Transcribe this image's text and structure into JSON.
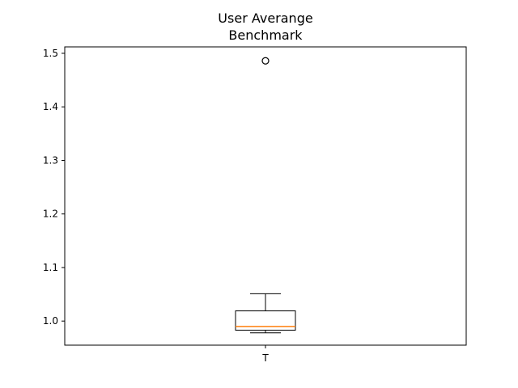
{
  "chart_data": {
    "type": "boxplot",
    "title_lines": [
      "User Averange",
      "Benchmark"
    ],
    "xlabel": "",
    "ylabel": "",
    "categories": [
      "T"
    ],
    "ylim": [
      0.955,
      1.512
    ],
    "yticks": [
      1.0,
      1.1,
      1.2,
      1.3,
      1.4,
      1.5
    ],
    "ytick_labels": [
      "1.0",
      "1.1",
      "1.2",
      "1.3",
      "1.4",
      "1.5"
    ],
    "grid": false,
    "boxes": [
      {
        "category": "T",
        "whisker_low": 0.978,
        "q1": 0.983,
        "median": 0.99,
        "q3": 1.019,
        "whisker_high": 1.051,
        "outliers": [
          1.486
        ]
      }
    ],
    "colors": {
      "box": "#000000",
      "median": "#ff7f0e",
      "axes": "#000000"
    }
  }
}
